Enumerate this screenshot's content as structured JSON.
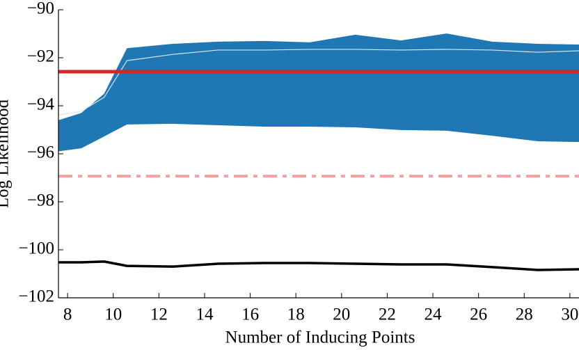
{
  "chart_data": {
    "type": "line",
    "x_label": "Number of Inducing Points",
    "y_label": "Log Likelihood",
    "x": [
      7.6,
      8.6,
      9.6,
      10.6,
      12.6,
      14.6,
      16.6,
      18.6,
      20.6,
      22.6,
      24.6,
      26.6,
      28.6,
      30.4
    ],
    "xlim": [
      7.6,
      30.4
    ],
    "xticks": [
      8,
      10,
      12,
      14,
      16,
      18,
      20,
      22,
      24,
      26,
      28,
      30
    ],
    "ylim": [
      -102,
      -90
    ],
    "yticks": [
      {
        "value": -102,
        "label": "−102"
      },
      {
        "value": -100,
        "label": "−100"
      },
      {
        "value": -98,
        "label": "−98"
      },
      {
        "value": -96,
        "label": "−96"
      },
      {
        "value": -94,
        "label": "−94"
      },
      {
        "value": -92,
        "label": "−92"
      },
      {
        "value": -90,
        "label": "−90"
      }
    ],
    "band": {
      "color": "#1f77b4",
      "upper": [
        -94.6,
        -94.3,
        -93.5,
        -91.6,
        -91.42,
        -91.33,
        -91.3,
        -91.36,
        -91.04,
        -91.28,
        -90.99,
        -91.33,
        -91.42,
        -91.45
      ],
      "lower": [
        -95.9,
        -95.77,
        -95.28,
        -94.78,
        -94.75,
        -94.81,
        -94.87,
        -94.87,
        -94.9,
        -95.01,
        -95.04,
        -95.25,
        -95.48,
        -95.51
      ]
    },
    "series": [
      {
        "color": "#dce6f0",
        "width": 1.2,
        "values": [
          -94.38,
          -94.23,
          -93.65,
          -92.12,
          -91.86,
          -91.68,
          -91.68,
          -91.65,
          -91.65,
          -91.68,
          -91.65,
          -91.68,
          -91.77,
          -91.71
        ]
      },
      {
        "color": "#000000",
        "width": 3.5,
        "values": [
          -100.52,
          -100.52,
          -100.49,
          -100.67,
          -100.7,
          -100.58,
          -100.55,
          -100.55,
          -100.58,
          -100.61,
          -100.61,
          -100.72,
          -100.84,
          -100.81
        ]
      }
    ],
    "hlines": [
      {
        "value": -92.58,
        "color": "#d62728",
        "style": "solid"
      },
      {
        "value": -96.93,
        "color": "#f4a0a0",
        "style": "dashdot"
      }
    ]
  }
}
